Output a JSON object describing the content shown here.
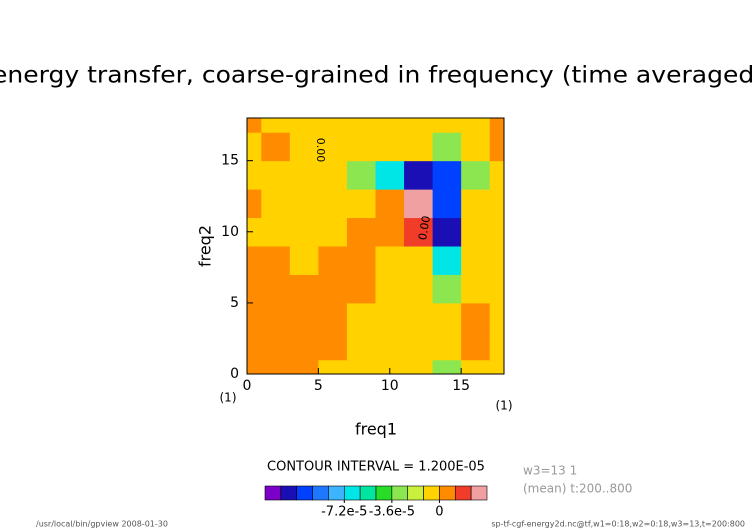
{
  "chart_data": {
    "type": "contour",
    "title": "energy transfer, coarse-grained in frequency (time averaged)",
    "x_label": "freq1",
    "y_label": "freq2",
    "x_unit": "(1)",
    "y_unit": "(1)",
    "x": [
      0,
      2,
      4,
      6,
      8,
      10,
      12,
      14,
      16,
      18
    ],
    "y": [
      0,
      2,
      4,
      6,
      8,
      10,
      12,
      14,
      16,
      18
    ],
    "xlim": [
      0,
      18
    ],
    "ylim": [
      0,
      18
    ],
    "xticks": [
      0,
      5,
      10,
      15
    ],
    "yticks": [
      0,
      5,
      10,
      15
    ],
    "z": [
      [
        6e-06,
        6e-06,
        6e-06,
        -6e-06,
        -6e-06,
        -6e-06,
        -6e-06,
        -3e-05,
        -6e-06,
        -6e-06
      ],
      [
        6e-06,
        6e-06,
        6e-06,
        6e-06,
        -6e-06,
        -6e-06,
        -6e-06,
        -6e-06,
        6e-06,
        -6e-06
      ],
      [
        6e-06,
        6e-06,
        6e-06,
        6e-06,
        -6e-06,
        -6e-06,
        -6e-06,
        -6e-06,
        6e-06,
        -6e-06
      ],
      [
        6e-06,
        6e-06,
        6e-06,
        6e-06,
        6e-06,
        -6e-06,
        -6e-06,
        -3e-05,
        -6e-06,
        -6e-06
      ],
      [
        6e-06,
        6e-06,
        -6e-06,
        6e-06,
        6e-06,
        -6e-06,
        -6e-06,
        -6.6e-05,
        -6e-06,
        -6e-06
      ],
      [
        -6e-06,
        -6e-06,
        -6e-06,
        -6e-06,
        6e-06,
        6e-06,
        1.8e-05,
        -0.000115,
        -6e-06,
        -6e-06
      ],
      [
        6e-06,
        -6e-06,
        -6e-06,
        -6e-06,
        -6e-06,
        6e-06,
        3e-05,
        -0.0001,
        -6e-06,
        -6e-06
      ],
      [
        -6e-06,
        -6e-06,
        -6e-06,
        -6e-06,
        -3e-05,
        -6.6e-05,
        -0.000115,
        -0.0001,
        -3e-05,
        -6e-06
      ],
      [
        -6e-06,
        6e-06,
        -6e-06,
        -6e-06,
        -6e-06,
        -6e-06,
        -6e-06,
        -3e-05,
        -6e-06,
        6e-06
      ],
      [
        6e-06,
        -6e-06,
        -6e-06,
        -6e-06,
        -6e-06,
        -6e-06,
        -6e-06,
        -6e-06,
        -6e-06,
        6e-06
      ]
    ],
    "levels": [
      -0.000132,
      -0.00012,
      -0.000108,
      -9.6e-05,
      -8.4e-05,
      -7.2e-05,
      -6e-05,
      -4.8e-05,
      -3.6e-05,
      -2.4e-05,
      -1.2e-05,
      0,
      1.2e-05,
      2.4e-05,
      3.6e-05
    ],
    "colors": [
      "#7b00c8",
      "#1a0fb4",
      "#0040ff",
      "#1e78ff",
      "#3cb4ff",
      "#00e6e6",
      "#00e6a0",
      "#28dc28",
      "#8ce650",
      "#c8f03c",
      "#ffd200",
      "#ff8c00",
      "#f03c28",
      "#f0a0a0"
    ],
    "colorbar_ticks": [
      {
        "value": -7.2e-05,
        "label": "-7.2e-5"
      },
      {
        "value": -3.6e-05,
        "label": "-3.6e-5"
      },
      0
    ],
    "contour_interval": "CONTOUR INTERVAL = 1.200E-05",
    "annotations": [
      "0.00",
      "0.00"
    ],
    "info": [
      "w3=13 1",
      "(mean) t:200..800"
    ],
    "footer_left": "/usr/local/bin/gpview  2008-01-30",
    "footer_right": "sp-tf-cgf-energy2d.nc@tf,w1=0:18,w2=0:18,w3=13,t=200:800"
  }
}
